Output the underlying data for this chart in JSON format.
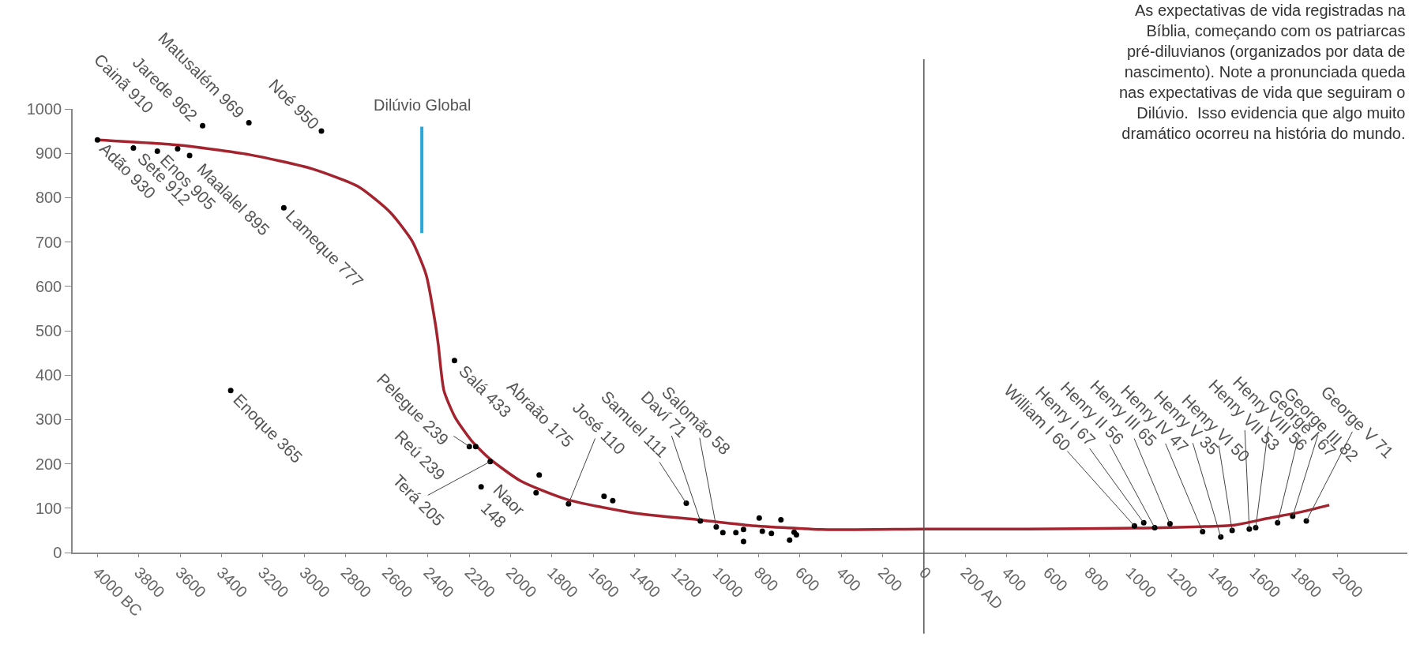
{
  "chart_data": {
    "type": "scatter",
    "annotations": [
      "As expectativas de vida registradas na\nBíblia, começando com os patriarcas\npré-diluvianos (organizados por data de\nnascimento). Note a pronunciada queda\nnas expectativas de vida que seguiram o\nDilúvio.  Isso evidencia que algo muito\ndramático ocorreu na história do mundo."
    ],
    "xlim": [
      -4120,
      2340
    ],
    "ylim": [
      0,
      1000
    ],
    "xticks": [
      {
        "value": -4000,
        "label": "4000 BC"
      },
      {
        "value": -3800,
        "label": "3800"
      },
      {
        "value": -3600,
        "label": "3600"
      },
      {
        "value": -3400,
        "label": "3400"
      },
      {
        "value": -3200,
        "label": "3200"
      },
      {
        "value": -3000,
        "label": "3000"
      },
      {
        "value": -2800,
        "label": "2800"
      },
      {
        "value": -2600,
        "label": "2600"
      },
      {
        "value": -2400,
        "label": "2400"
      },
      {
        "value": -2200,
        "label": "2200"
      },
      {
        "value": -2000,
        "label": "2000"
      },
      {
        "value": -1800,
        "label": "1800"
      },
      {
        "value": -1600,
        "label": "1600"
      },
      {
        "value": -1400,
        "label": "1400"
      },
      {
        "value": -1200,
        "label": "1200"
      },
      {
        "value": -1000,
        "label": "1000"
      },
      {
        "value": -800,
        "label": "800"
      },
      {
        "value": -600,
        "label": "600"
      },
      {
        "value": -400,
        "label": "400"
      },
      {
        "value": -200,
        "label": "200"
      },
      0,
      {
        "value": 200,
        "label": "200 AD"
      },
      400,
      600,
      800,
      1000,
      1200,
      1400,
      1600,
      1800,
      2000
    ],
    "yticks": [
      0,
      100,
      200,
      300,
      400,
      500,
      600,
      700,
      800,
      900,
      1000
    ],
    "ref_lines": [
      {
        "axis": "x",
        "value": -2430,
        "label": "Dilúvio Global",
        "color": "#29a9db"
      },
      {
        "axis": "x",
        "value": 0,
        "color": "#555555"
      }
    ],
    "series": [
      {
        "type": "line",
        "marker": "none",
        "color": "#a3232e",
        "x": [
          -4000,
          -3600,
          -3266,
          -2961,
          -2734,
          -2583,
          -2478,
          -2409,
          -2364,
          -2350,
          -2323,
          -2268,
          -2191,
          -2103,
          -1950,
          -1730,
          -1401,
          -1094,
          -863,
          -497,
          0,
          500,
          1029,
          1503,
          1662,
          1821,
          1962
        ],
        "values": [
          930,
          918,
          897,
          865,
          824,
          767,
          703,
          626,
          514,
          467,
          365,
          304,
          253,
          212,
          161,
          120,
          89,
          74,
          62,
          52,
          53,
          53,
          55,
          62,
          77,
          91,
          107
        ]
      },
      {
        "marker": "circle",
        "color": "#000000",
        "x": [
          -4000,
          -3826,
          -3710,
          -3612,
          -3554,
          -3491,
          -3355,
          -3267,
          -3098,
          -2916,
          -2272,
          -2200,
          -2169,
          -2143,
          -2099,
          -1877,
          -1862,
          -1720,
          -1548,
          -1506,
          -1150,
          -1082,
          -1005,
          -973,
          -910,
          -873,
          -873,
          -797,
          -782,
          -738,
          -692,
          -650,
          -628,
          -617,
          1019,
          1064,
          1117,
          1191,
          1349,
          1437,
          1492,
          1575,
          1606,
          1712,
          1785,
          1851
        ],
        "values": [
          930,
          912,
          905,
          910,
          895,
          962,
          365,
          969,
          777,
          950,
          433,
          239,
          239,
          148,
          205,
          135,
          175,
          110,
          127,
          117,
          111,
          71,
          58,
          45,
          45,
          52,
          25,
          78,
          48,
          43,
          74,
          28,
          46,
          40,
          60,
          67,
          56,
          65,
          47,
          35,
          50,
          53,
          56,
          67,
          82,
          71
        ],
        "value_labels": [
          "Adão 930",
          "Sete 912",
          "Enos 905",
          "Cainã 910",
          "Maalalel 895",
          "Jarede 962",
          "Enoque 365",
          "Matusalém 969",
          "Lameque 777",
          "Noé 950",
          "Salá 433",
          "Pelegue 239",
          "Reú 239",
          "Naor\n148",
          "Terá 205",
          null,
          "Abraão 175",
          "José 110",
          null,
          null,
          "Samuel 111",
          "Daví 71",
          "Salomão 58",
          null,
          null,
          null,
          null,
          null,
          null,
          null,
          null,
          null,
          null,
          null,
          "William I 60",
          "Henry I 67",
          "Henry II 56",
          "Henry III 65",
          "Henry IV 47",
          "Henry V 35",
          "Henry VI 50",
          "Henry VII 53",
          "Henry VIII 56",
          "George I 67",
          "George III 82",
          "George V 71"
        ]
      }
    ]
  }
}
